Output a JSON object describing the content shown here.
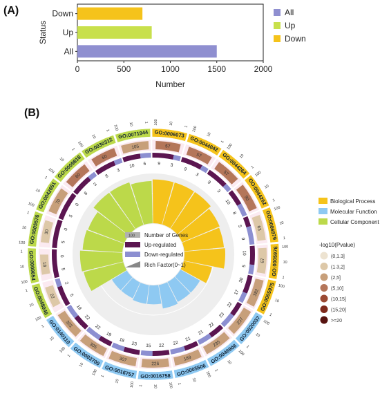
{
  "chart_data": [
    {
      "type": "bar",
      "orientation": "horizontal",
      "panel_label": "(A)",
      "categories": [
        "All",
        "Up",
        "Down"
      ],
      "values": [
        1500,
        800,
        700
      ],
      "colors": [
        "#8f8fd0",
        "#c8e04c",
        "#f5c31b"
      ],
      "xlabel": "Number",
      "ylabel": "Status",
      "xlim": [
        0,
        2000
      ],
      "xticks": [
        "0",
        "500",
        "1000",
        "1500",
        "2000"
      ],
      "legend": [
        "All",
        "Up",
        "Down"
      ],
      "legend_position": "right",
      "grid": false
    },
    {
      "type": "circular",
      "panel_label": "(B)",
      "scale_labels": {
        "max": "100",
        "mid": "10",
        "min": "1"
      },
      "categories": [
        {
          "id": "GO:0006073",
          "group": "Biological Process",
          "count": 57,
          "up": 9,
          "down": 3,
          "pvalue_class": 3,
          "rich_factor": 0.88
        },
        {
          "id": "GO:0044042",
          "group": "Biological Process",
          "count": 57,
          "up": 9,
          "down": 3,
          "pvalue_class": 3,
          "rich_factor": 0.88
        },
        {
          "id": "GO:0044264",
          "group": "Biological Process",
          "count": 57,
          "up": 9,
          "down": 3,
          "pvalue_class": 3,
          "rich_factor": 0.88
        },
        {
          "id": "GO:0044262",
          "group": "Biological Process",
          "count": 90,
          "up": 10,
          "down": 8,
          "pvalue_class": 3,
          "rich_factor": 0.82
        },
        {
          "id": "GO:0006979",
          "group": "Biological Process",
          "count": 63,
          "up": 5,
          "down": 9,
          "pvalue_class": 1,
          "rich_factor": 0.8
        },
        {
          "id": "GO:0005976",
          "group": "Biological Process",
          "count": 67,
          "up": 10,
          "down": 5,
          "pvalue_class": 1,
          "rich_factor": 0.82
        },
        {
          "id": "GO:0005975",
          "group": "Biological Process",
          "count": 382,
          "up": 30,
          "down": 17,
          "pvalue_class": 2,
          "rich_factor": 0.58
        },
        {
          "id": "GO:0020037",
          "group": "Molecular Function",
          "count": 237,
          "up": 22,
          "down": 23,
          "pvalue_class": 2,
          "rich_factor": 0.45
        },
        {
          "id": "GO:0046906",
          "group": "Molecular Function",
          "count": 235,
          "up": 22,
          "down": 21,
          "pvalue_class": 2,
          "rich_factor": 0.45
        },
        {
          "id": "GO:0005506",
          "group": "Molecular Function",
          "count": 189,
          "up": 21,
          "down": 22,
          "pvalue_class": 2,
          "rich_factor": 0.48
        },
        {
          "id": "GO:0016758",
          "group": "Molecular Function",
          "count": 226,
          "up": 22,
          "down": 15,
          "pvalue_class": 2,
          "rich_factor": 0.38
        },
        {
          "id": "GO:0016757",
          "group": "Molecular Function",
          "count": 307,
          "up": 23,
          "down": 18,
          "pvalue_class": 2,
          "rich_factor": 0.38
        },
        {
          "id": "GO:0003700",
          "group": "Molecular Function",
          "count": 305,
          "up": 19,
          "down": 22,
          "pvalue_class": 2,
          "rich_factor": 0.35
        },
        {
          "id": "GO:0140110",
          "group": "Molecular Function",
          "count": 323,
          "up": 22,
          "down": 19,
          "pvalue_class": 2,
          "rich_factor": 0.35
        },
        {
          "id": "GO:0048046",
          "group": "Cellular Component",
          "count": 22,
          "up": 5,
          "down": 2,
          "pvalue_class": 1,
          "rich_factor": 0.82
        },
        {
          "id": "GO:0009654",
          "group": "Cellular Component",
          "count": 18,
          "up": 5,
          "down": 0,
          "pvalue_class": 1,
          "rich_factor": 0.85
        },
        {
          "id": "GO:0005576",
          "group": "Cellular Component",
          "count": 30,
          "up": 5,
          "down": 0,
          "pvalue_class": 1,
          "rich_factor": 0.8
        },
        {
          "id": "GO:0042651",
          "group": "Cellular Component",
          "count": 70,
          "up": 5,
          "down": 0,
          "pvalue_class": 2,
          "rich_factor": 0.78
        },
        {
          "id": "GO:0005818",
          "group": "Cellular Component",
          "count": 60,
          "up": 8,
          "down": 3,
          "pvalue_class": 3,
          "rich_factor": 0.9
        },
        {
          "id": "GO:0030312",
          "group": "Cellular Component",
          "count": 60,
          "up": 8,
          "down": 3,
          "pvalue_class": 3,
          "rich_factor": 0.9
        },
        {
          "id": "GO:0071944",
          "group": "Cellular Component",
          "count": 105,
          "up": 10,
          "down": 6,
          "pvalue_class": 2,
          "rich_factor": 0.85
        }
      ],
      "groups": [
        {
          "name": "Biological Process",
          "color": "#f5c31b"
        },
        {
          "name": "Molecular Function",
          "color": "#8ec9f2"
        },
        {
          "name": "Cellular Component",
          "color": "#bcd94a"
        }
      ],
      "center_legend": [
        "Number of Genes",
        "Up-regulated",
        "Down-regulated",
        "Rich Factor(0~1)"
      ],
      "pvalue_legend": {
        "title": "-log10(Pvalue)",
        "classes": [
          "(0,1.3]",
          "(1.3,2]",
          "(2,5]",
          "(5,10]",
          "(10,15]",
          "(15,20]",
          ">=20"
        ],
        "colors": [
          "#ede3d1",
          "#ddc8a8",
          "#c79f7a",
          "#b4765a",
          "#9b4a33",
          "#7f2a1c",
          "#571310"
        ]
      },
      "colors": {
        "up": "#5b1550",
        "down": "#8c8fd1",
        "count_box": "#b0b0b0"
      }
    }
  ]
}
